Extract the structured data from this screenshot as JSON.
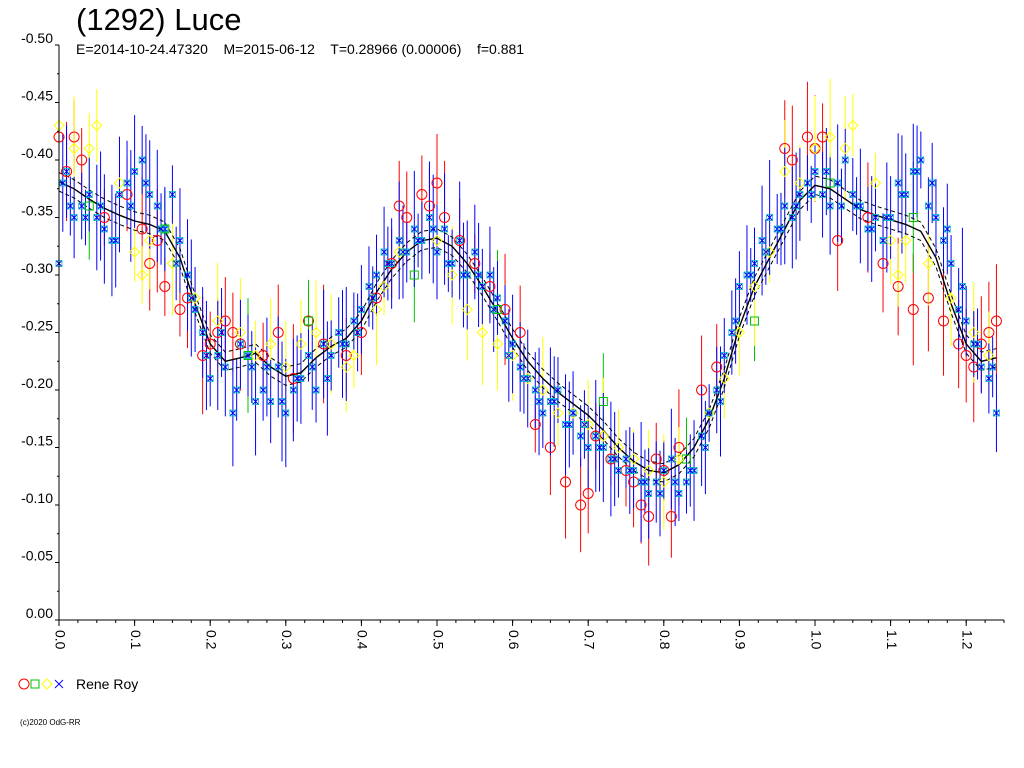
{
  "chart_data": {
    "type": "scatter",
    "title": "(1292) Luce",
    "subtitle": "E=2014-10-24.47320    M=2015-06-12    T=0.28966 (0.00006)    f=0.881",
    "xlim": [
      0.0,
      1.25
    ],
    "ylim": [
      0.0,
      -0.5
    ],
    "y_axis_inverted": true,
    "x_tick_labels": [
      "0.0",
      "0.1",
      "0.2",
      "0.3",
      "0.4",
      "0.5",
      "0.6",
      "0.7",
      "0.8",
      "0.9",
      "1.0",
      "1.1",
      "1.2"
    ],
    "y_tick_labels": [
      "0.00",
      "-0.05",
      "-0.10",
      "-0.15",
      "-0.20",
      "-0.25",
      "-0.30",
      "-0.35",
      "-0.40",
      "-0.45",
      "-0.50"
    ],
    "grid": false,
    "fit_curve": {
      "phase": [
        0.0,
        0.02,
        0.04,
        0.06,
        0.08,
        0.1,
        0.12,
        0.14,
        0.16,
        0.18,
        0.2,
        0.22,
        0.24,
        0.26,
        0.28,
        0.3,
        0.32,
        0.34,
        0.36,
        0.38,
        0.4,
        0.42,
        0.44,
        0.46,
        0.48,
        0.5,
        0.52,
        0.54,
        0.56,
        0.58,
        0.6,
        0.62,
        0.64,
        0.66,
        0.68,
        0.7,
        0.72,
        0.74,
        0.76,
        0.78,
        0.8,
        0.82,
        0.84,
        0.86,
        0.88,
        0.9,
        0.92,
        0.94,
        0.96,
        0.98,
        1.0,
        1.02,
        1.04,
        1.06,
        1.08,
        1.1,
        1.12,
        1.14,
        1.16,
        1.18,
        1.2,
        1.22,
        1.24
      ],
      "mag": [
        -0.381,
        -0.375,
        -0.366,
        -0.358,
        -0.352,
        -0.347,
        -0.344,
        -0.338,
        -0.315,
        -0.275,
        -0.24,
        -0.225,
        -0.228,
        -0.232,
        -0.22,
        -0.212,
        -0.215,
        -0.228,
        -0.238,
        -0.245,
        -0.26,
        -0.285,
        -0.305,
        -0.32,
        -0.33,
        -0.332,
        -0.325,
        -0.31,
        -0.29,
        -0.268,
        -0.245,
        -0.225,
        -0.21,
        -0.198,
        -0.188,
        -0.178,
        -0.165,
        -0.15,
        -0.138,
        -0.13,
        -0.128,
        -0.135,
        -0.15,
        -0.175,
        -0.21,
        -0.255,
        -0.29,
        -0.315,
        -0.34,
        -0.365,
        -0.378,
        -0.375,
        -0.366,
        -0.357,
        -0.352,
        -0.348,
        -0.344,
        -0.338,
        -0.315,
        -0.275,
        -0.24,
        -0.225,
        -0.228
      ]
    },
    "series": [
      {
        "name": "Rene Roy",
        "color": "#ff0000",
        "marker": "circle",
        "x": [
          0.0,
          0.01,
          0.02,
          0.03,
          0.06,
          0.09,
          0.11,
          0.12,
          0.13,
          0.14,
          0.16,
          0.17,
          0.19,
          0.2,
          0.21,
          0.22,
          0.23,
          0.24,
          0.27,
          0.29,
          0.31,
          0.33,
          0.35,
          0.38,
          0.4,
          0.42,
          0.44,
          0.45,
          0.46,
          0.48,
          0.49,
          0.5,
          0.51,
          0.53,
          0.55,
          0.57,
          0.59,
          0.61,
          0.63,
          0.65,
          0.67,
          0.69,
          0.7,
          0.71,
          0.73,
          0.75,
          0.76,
          0.77,
          0.78,
          0.79,
          0.8,
          0.81,
          0.82,
          0.85,
          0.87,
          0.96,
          0.97,
          0.99,
          1.0,
          1.01,
          1.03,
          1.07,
          1.09,
          1.11,
          1.13,
          1.15,
          1.17,
          1.19,
          1.2,
          1.21,
          1.22,
          1.23,
          1.24
        ],
        "mag": [
          -0.42,
          -0.39,
          -0.42,
          -0.4,
          -0.35,
          -0.37,
          -0.34,
          -0.31,
          -0.33,
          -0.29,
          -0.27,
          -0.28,
          -0.23,
          -0.24,
          -0.25,
          -0.26,
          -0.25,
          -0.24,
          -0.23,
          -0.25,
          -0.21,
          -0.26,
          -0.24,
          -0.23,
          -0.25,
          -0.28,
          -0.31,
          -0.36,
          -0.35,
          -0.37,
          -0.36,
          -0.38,
          -0.35,
          -0.33,
          -0.31,
          -0.29,
          -0.27,
          -0.25,
          -0.17,
          -0.15,
          -0.12,
          -0.1,
          -0.11,
          -0.16,
          -0.14,
          -0.13,
          -0.12,
          -0.1,
          -0.09,
          -0.14,
          -0.13,
          -0.09,
          -0.15,
          -0.2,
          -0.22,
          -0.41,
          -0.4,
          -0.42,
          -0.41,
          -0.42,
          -0.33,
          -0.35,
          -0.31,
          -0.29,
          -0.27,
          -0.28,
          -0.26,
          -0.24,
          -0.23,
          -0.22,
          -0.24,
          -0.25,
          -0.26
        ]
      },
      {
        "name": "Rene Roy",
        "color": "#00c000",
        "marker": "square",
        "x": [
          0.04,
          0.14,
          0.25,
          0.33,
          0.47,
          0.58,
          0.72,
          0.83,
          0.92,
          1.02,
          1.13
        ],
        "mag": [
          -0.36,
          -0.34,
          -0.23,
          -0.26,
          -0.3,
          -0.27,
          -0.19,
          -0.14,
          -0.26,
          -0.38,
          -0.35
        ]
      },
      {
        "name": "Rene Roy",
        "color": "#ffff00",
        "marker": "diamond",
        "x": [
          0.0,
          0.02,
          0.04,
          0.05,
          0.08,
          0.1,
          0.11,
          0.12,
          0.15,
          0.18,
          0.21,
          0.24,
          0.26,
          0.28,
          0.3,
          0.32,
          0.34,
          0.36,
          0.38,
          0.39,
          0.42,
          0.43,
          0.45,
          0.5,
          0.52,
          0.54,
          0.56,
          0.58,
          0.6,
          0.62,
          0.64,
          0.66,
          0.68,
          0.7,
          0.72,
          0.74,
          0.76,
          0.78,
          0.8,
          0.82,
          0.86,
          0.88,
          0.9,
          0.92,
          0.94,
          0.96,
          0.98,
          1.0,
          1.02,
          1.04,
          1.05,
          1.08,
          1.1,
          1.11,
          1.12,
          1.15,
          1.18,
          1.21,
          1.23
        ],
        "mag": [
          -0.43,
          -0.41,
          -0.41,
          -0.43,
          -0.38,
          -0.32,
          -0.3,
          -0.33,
          -0.31,
          -0.28,
          -0.26,
          -0.25,
          -0.23,
          -0.24,
          -0.22,
          -0.24,
          -0.25,
          -0.24,
          -0.22,
          -0.23,
          -0.27,
          -0.29,
          -0.32,
          -0.33,
          -0.3,
          -0.27,
          -0.25,
          -0.24,
          -0.23,
          -0.21,
          -0.2,
          -0.18,
          -0.18,
          -0.17,
          -0.16,
          -0.15,
          -0.14,
          -0.13,
          -0.12,
          -0.14,
          -0.18,
          -0.21,
          -0.25,
          -0.29,
          -0.32,
          -0.39,
          -0.38,
          -0.41,
          -0.42,
          -0.41,
          -0.43,
          -0.38,
          -0.33,
          -0.3,
          -0.33,
          -0.31,
          -0.28,
          -0.25,
          -0.23
        ]
      },
      {
        "name": "Rene Roy",
        "color": "#0000ff",
        "marker": "cross",
        "x": [
          0.0,
          0.01,
          0.02,
          0.03,
          0.04,
          0.05,
          0.06,
          0.07,
          0.08,
          0.09,
          0.1,
          0.11,
          0.12,
          0.13,
          0.14,
          0.15,
          0.16,
          0.17,
          0.18,
          0.19,
          0.2,
          0.21,
          0.22,
          0.23,
          0.24,
          0.25,
          0.26,
          0.27,
          0.28,
          0.29,
          0.3,
          0.31,
          0.32,
          0.33,
          0.34,
          0.35,
          0.36,
          0.37,
          0.38,
          0.39,
          0.4,
          0.41,
          0.42,
          0.43,
          0.44,
          0.45,
          0.46,
          0.47,
          0.48,
          0.49,
          0.5,
          0.51,
          0.52,
          0.53,
          0.54,
          0.55,
          0.56,
          0.57,
          0.58,
          0.59,
          0.6,
          0.61,
          0.62,
          0.63,
          0.64,
          0.65,
          0.66,
          0.67,
          0.68,
          0.69,
          0.7,
          0.71,
          0.72,
          0.73,
          0.74,
          0.75,
          0.76,
          0.77,
          0.78,
          0.79,
          0.8,
          0.81,
          0.82,
          0.83,
          0.84,
          0.85,
          0.86,
          0.87,
          0.88,
          0.89,
          0.9,
          0.91,
          0.92,
          0.93,
          0.94,
          0.95,
          0.96,
          0.97,
          0.98,
          0.99,
          1.0,
          1.01,
          1.02,
          1.03,
          1.04,
          1.05,
          1.06,
          1.07,
          1.08,
          1.09,
          1.1,
          1.11,
          1.12,
          1.13,
          1.14,
          1.15,
          1.16,
          1.17,
          1.18,
          1.19,
          1.2,
          1.21,
          1.22,
          1.23,
          1.24,
          0.005,
          0.015,
          0.035,
          0.055,
          0.075,
          0.095,
          0.115,
          0.135,
          0.155,
          0.175,
          0.195,
          0.215,
          0.235,
          0.255,
          0.275,
          0.295,
          0.315,
          0.335,
          0.355,
          0.375,
          0.395,
          0.415,
          0.435,
          0.455,
          0.475,
          0.495,
          0.515,
          0.535,
          0.555,
          0.575,
          0.595,
          0.615,
          0.635,
          0.655,
          0.675,
          0.695,
          0.715,
          0.735,
          0.755,
          0.775,
          0.795,
          0.815,
          0.835,
          0.855,
          0.875,
          0.895,
          0.915,
          0.935,
          0.955,
          0.975,
          0.995,
          1.015,
          1.035,
          1.055,
          1.075,
          1.095,
          1.115,
          1.135,
          1.155,
          1.175,
          1.195,
          1.215,
          1.235
        ],
        "mag": [
          -0.31,
          -0.39,
          -0.35,
          -0.36,
          -0.37,
          -0.35,
          -0.34,
          -0.33,
          -0.37,
          -0.38,
          -0.39,
          -0.4,
          -0.37,
          -0.36,
          -0.34,
          -0.37,
          -0.33,
          -0.3,
          -0.27,
          -0.25,
          -0.21,
          -0.23,
          -0.22,
          -0.18,
          -0.24,
          -0.23,
          -0.19,
          -0.2,
          -0.19,
          -0.22,
          -0.18,
          -0.2,
          -0.21,
          -0.23,
          -0.2,
          -0.24,
          -0.23,
          -0.25,
          -0.24,
          -0.26,
          -0.27,
          -0.29,
          -0.3,
          -0.32,
          -0.31,
          -0.33,
          -0.32,
          -0.34,
          -0.33,
          -0.35,
          -0.32,
          -0.34,
          -0.31,
          -0.33,
          -0.3,
          -0.32,
          -0.29,
          -0.3,
          -0.28,
          -0.26,
          -0.24,
          -0.22,
          -0.21,
          -0.2,
          -0.18,
          -0.19,
          -0.2,
          -0.17,
          -0.18,
          -0.16,
          -0.15,
          -0.16,
          -0.15,
          -0.14,
          -0.13,
          -0.14,
          -0.13,
          -0.12,
          -0.11,
          -0.12,
          -0.13,
          -0.14,
          -0.11,
          -0.12,
          -0.13,
          -0.16,
          -0.18,
          -0.2,
          -0.23,
          -0.25,
          -0.29,
          -0.3,
          -0.31,
          -0.33,
          -0.35,
          -0.34,
          -0.36,
          -0.35,
          -0.37,
          -0.38,
          -0.39,
          -0.37,
          -0.36,
          -0.38,
          -0.4,
          -0.37,
          -0.36,
          -0.34,
          -0.35,
          -0.33,
          -0.35,
          -0.38,
          -0.37,
          -0.39,
          -0.4,
          -0.36,
          -0.35,
          -0.33,
          -0.31,
          -0.27,
          -0.26,
          -0.24,
          -0.22,
          -0.21,
          -0.18,
          -0.38,
          -0.36,
          -0.35,
          -0.36,
          -0.33,
          -0.36,
          -0.38,
          -0.34,
          -0.31,
          -0.28,
          -0.23,
          -0.25,
          -0.2,
          -0.22,
          -0.22,
          -0.19,
          -0.21,
          -0.22,
          -0.21,
          -0.24,
          -0.25,
          -0.28,
          -0.31,
          -0.32,
          -0.33,
          -0.34,
          -0.31,
          -0.3,
          -0.3,
          -0.27,
          -0.23,
          -0.21,
          -0.19,
          -0.19,
          -0.17,
          -0.17,
          -0.15,
          -0.14,
          -0.13,
          -0.12,
          -0.11,
          -0.12,
          -0.13,
          -0.15,
          -0.19,
          -0.26,
          -0.3,
          -0.32,
          -0.34,
          -0.36,
          -0.37,
          -0.39,
          -0.36,
          -0.36,
          -0.34,
          -0.35,
          -0.37,
          -0.39,
          -0.38,
          -0.34,
          -0.29,
          -0.24,
          -0.22,
          -0.2
        ]
      }
    ]
  },
  "legend": {
    "label": "Rene Roy"
  },
  "footer": {
    "copyright": "(c)2020 OdG-RR"
  }
}
